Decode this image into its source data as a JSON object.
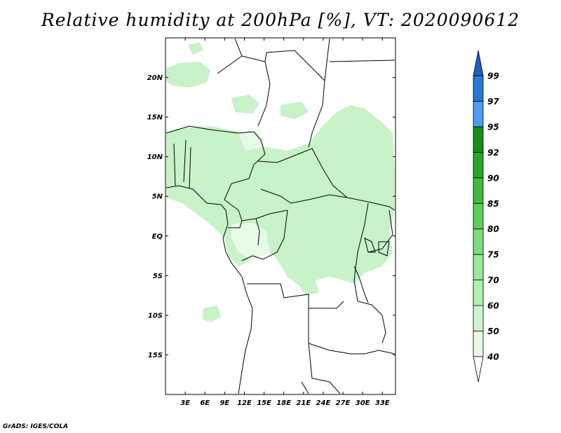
{
  "title": "Relative humidity at 200hPa [%], VT: 2020090612",
  "credit": "GrADS: IGES/COLA",
  "map": {
    "lon_range": [
      0,
      35
    ],
    "lat_range": [
      -20,
      25
    ],
    "lat_ticks": [
      "20N",
      "15N",
      "10N",
      "5N",
      "EQ",
      "5S",
      "10S",
      "15S"
    ],
    "lon_ticks": [
      "3E",
      "6E",
      "9E",
      "12E",
      "15E",
      "18E",
      "21E",
      "24E",
      "27E",
      "30E",
      "33E"
    ]
  },
  "colorbar": {
    "labels": [
      "40",
      "50",
      "60",
      "70",
      "75",
      "80",
      "85",
      "90",
      "92",
      "95",
      "97",
      "99"
    ],
    "colors": [
      "#ffffff",
      "#e6fae6",
      "#cdf4cd",
      "#b4efb4",
      "#9be69b",
      "#7ddc7d",
      "#5ad25a",
      "#3cbe3c",
      "#28a628",
      "#168e16",
      "#4b9ef0",
      "#2878d8",
      "#1e5ec8"
    ]
  }
}
